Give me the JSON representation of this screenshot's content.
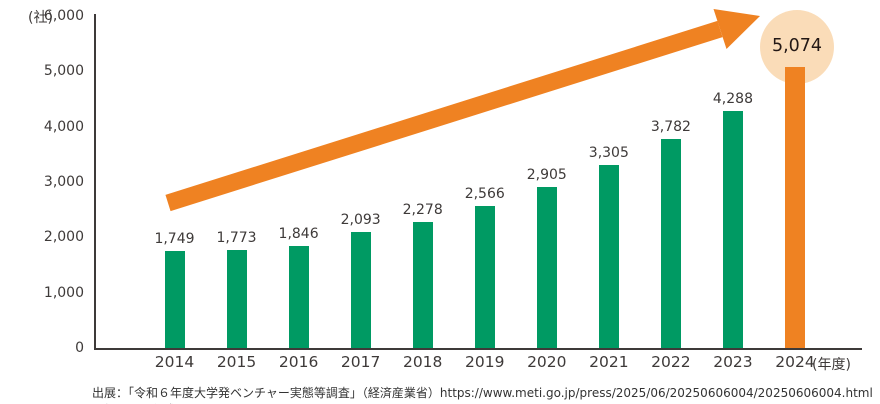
{
  "chart_data": {
    "type": "bar",
    "title": "",
    "unit_y": "(社)",
    "unit_x": "(年度)",
    "categories": [
      "2014",
      "2015",
      "2016",
      "2017",
      "2018",
      "2019",
      "2020",
      "2021",
      "2022",
      "2023",
      "2024"
    ],
    "values": [
      1749,
      1773,
      1846,
      2093,
      2278,
      2566,
      2905,
      3305,
      3782,
      4288,
      5074
    ],
    "value_labels": [
      "1,749",
      "1,773",
      "1,846",
      "2,093",
      "2,278",
      "2,566",
      "2,905",
      "3,305",
      "3,782",
      "4,288",
      "5,074"
    ],
    "highlight_index": 10,
    "ylim": [
      0,
      6000
    ],
    "yticks": [
      {
        "value": 0,
        "label": "0"
      },
      {
        "value": 1000,
        "label": "1,000"
      },
      {
        "value": 2000,
        "label": "2,000"
      },
      {
        "value": 3000,
        "label": "3,000"
      },
      {
        "value": 4000,
        "label": "4,000"
      },
      {
        "value": 5000,
        "label": "5,000"
      },
      {
        "value": 6000,
        "label": "6,000"
      }
    ],
    "grid": false,
    "legend": false,
    "colors": {
      "bar": "#009A63",
      "highlight_bar": "#EF8222",
      "arrow": "#EF8222",
      "highlight_circle": "#FADCB8",
      "text": "#3E3A39",
      "axis": "#3E3A39"
    },
    "annotations": [
      "upward trend arrow"
    ]
  },
  "source": {
    "text": "出展：「令和６年度大学発ベンチャー実態等調査」（経済産業省）https://www.meti.go.jp/press/2025/06/20250606004/20250606004.html を加工して作成"
  }
}
